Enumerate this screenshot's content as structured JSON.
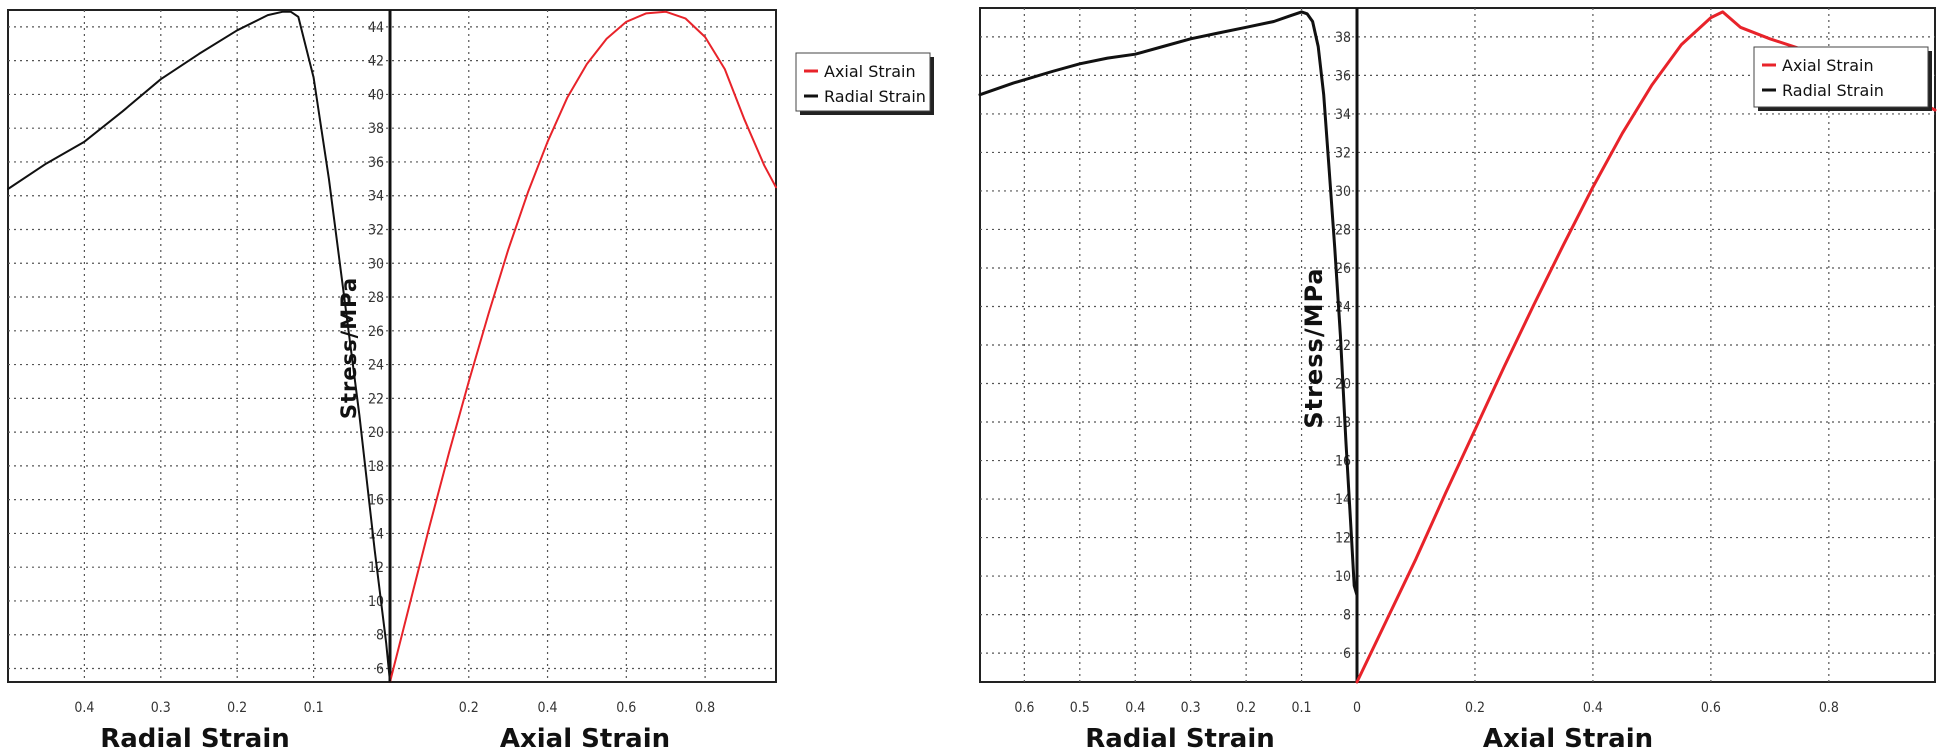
{
  "chart_data": [
    {
      "type": "line",
      "id": "left",
      "ylabel": "Stress/MPa",
      "xlabel_left": "Radial Strain",
      "xlabel_right": "Axial Strain",
      "ylim": [
        5.2,
        45
      ],
      "yticks": [
        6,
        8,
        10,
        12,
        14,
        16,
        18,
        20,
        22,
        24,
        26,
        28,
        30,
        32,
        34,
        36,
        38,
        40,
        42,
        44
      ],
      "ytick_labels": [
        "6",
        "8",
        "10",
        "12",
        "14",
        "16",
        "18",
        "20",
        "22",
        "24",
        "26",
        "28",
        "30",
        "32",
        "34",
        "36",
        "38",
        "40",
        "42",
        "44"
      ],
      "radial_xlim": [
        0.5,
        0
      ],
      "radial_ticks": [
        0.4,
        0.3,
        0.2,
        0.1
      ],
      "radial_tick_labels": [
        "0.4",
        "0.3",
        "0.2",
        "0.1"
      ],
      "axial_xlim": [
        0,
        0.98
      ],
      "axial_ticks": [
        0.2,
        0.4,
        0.6,
        0.8
      ],
      "axial_tick_labels": [
        "0.2",
        "0.4",
        "0.6",
        "0.8"
      ],
      "legend": [
        {
          "label": "Axial Strain",
          "color": "#e8232a"
        },
        {
          "label": "Radial Strain",
          "color": "#111111"
        }
      ],
      "series": [
        {
          "name": "Axial Strain",
          "color": "#e8232a",
          "x": [
            0,
            0.05,
            0.1,
            0.15,
            0.2,
            0.25,
            0.3,
            0.35,
            0.4,
            0.45,
            0.5,
            0.55,
            0.6,
            0.65,
            0.7,
            0.75,
            0.8,
            0.85,
            0.9,
            0.95,
            0.98
          ],
          "y": [
            5.2,
            9.8,
            14.4,
            18.8,
            23.0,
            27.0,
            30.8,
            34.2,
            37.2,
            39.8,
            41.8,
            43.3,
            44.3,
            44.8,
            44.9,
            44.5,
            43.4,
            41.5,
            38.5,
            35.8,
            34.5
          ]
        },
        {
          "name": "Radial Strain",
          "color": "#111111",
          "x": [
            0.5,
            0.45,
            0.4,
            0.35,
            0.3,
            0.25,
            0.2,
            0.16,
            0.14,
            0.13,
            0.12,
            0.1,
            0.08,
            0.06,
            0.04,
            0.02,
            0.005,
            0
          ],
          "y": [
            34.4,
            35.9,
            37.2,
            39.0,
            40.9,
            42.4,
            43.8,
            44.7,
            44.9,
            44.9,
            44.6,
            41.0,
            35.0,
            28.0,
            21.0,
            13.0,
            7.5,
            5.2
          ]
        }
      ]
    },
    {
      "type": "line",
      "id": "right",
      "ylabel": "Stress/MPa",
      "xlabel_left": "Radial Strain",
      "xlabel_right": "Axial Strain",
      "ylim": [
        4.5,
        39.5
      ],
      "yticks": [
        6,
        8,
        10,
        12,
        14,
        16,
        18,
        20,
        22,
        24,
        26,
        28,
        30,
        32,
        34,
        36,
        38
      ],
      "ytick_labels": [
        "6",
        "8",
        "10",
        "12",
        "14",
        "16",
        "18",
        "20",
        "22",
        "24",
        "26",
        "28",
        "30",
        "32",
        "34",
        "36",
        "38"
      ],
      "radial_xlim": [
        0.68,
        0
      ],
      "radial_ticks": [
        0.6,
        0.5,
        0.4,
        0.3,
        0.2,
        0.1,
        0
      ],
      "radial_tick_labels": [
        "0.6",
        "0.5",
        "0.4",
        "0.3",
        "0.2",
        "0.1",
        "0"
      ],
      "axial_xlim": [
        0,
        0.98
      ],
      "axial_ticks": [
        0.2,
        0.4,
        0.6,
        0.8
      ],
      "axial_tick_labels": [
        "0.2",
        "0.4",
        "0.6",
        "0.8"
      ],
      "legend": [
        {
          "label": "Axial Strain",
          "color": "#e8232a"
        },
        {
          "label": "Radial Strain",
          "color": "#111111"
        }
      ],
      "series": [
        {
          "name": "Axial Strain",
          "color": "#e8232a",
          "x": [
            0,
            0.05,
            0.1,
            0.15,
            0.2,
            0.25,
            0.3,
            0.35,
            0.4,
            0.45,
            0.5,
            0.55,
            0.6,
            0.62,
            0.65,
            0.7,
            0.75,
            0.8,
            0.85,
            0.9,
            0.95,
            0.98
          ],
          "y": [
            4.5,
            7.7,
            10.9,
            14.3,
            17.6,
            20.9,
            24.1,
            27.2,
            30.2,
            33.0,
            35.5,
            37.6,
            39.0,
            39.3,
            38.5,
            37.9,
            37.4,
            36.8,
            36.3,
            35.6,
            34.7,
            34.2
          ],
          "lw": 3
        },
        {
          "name": "Radial Strain",
          "color": "#111111",
          "x": [
            0.68,
            0.62,
            0.55,
            0.5,
            0.45,
            0.4,
            0.35,
            0.3,
            0.25,
            0.2,
            0.15,
            0.12,
            0.1,
            0.09,
            0.08,
            0.07,
            0.06,
            0.05,
            0.04,
            0.03,
            0.02,
            0.01,
            0.005,
            0
          ],
          "y": [
            35.0,
            35.6,
            36.2,
            36.6,
            36.9,
            37.1,
            37.5,
            37.9,
            38.2,
            38.5,
            38.8,
            39.1,
            39.3,
            39.2,
            38.8,
            37.5,
            35.0,
            31.0,
            27.0,
            22.5,
            17.0,
            12.0,
            9.5,
            9.0
          ],
          "lw": 3
        }
      ]
    }
  ]
}
